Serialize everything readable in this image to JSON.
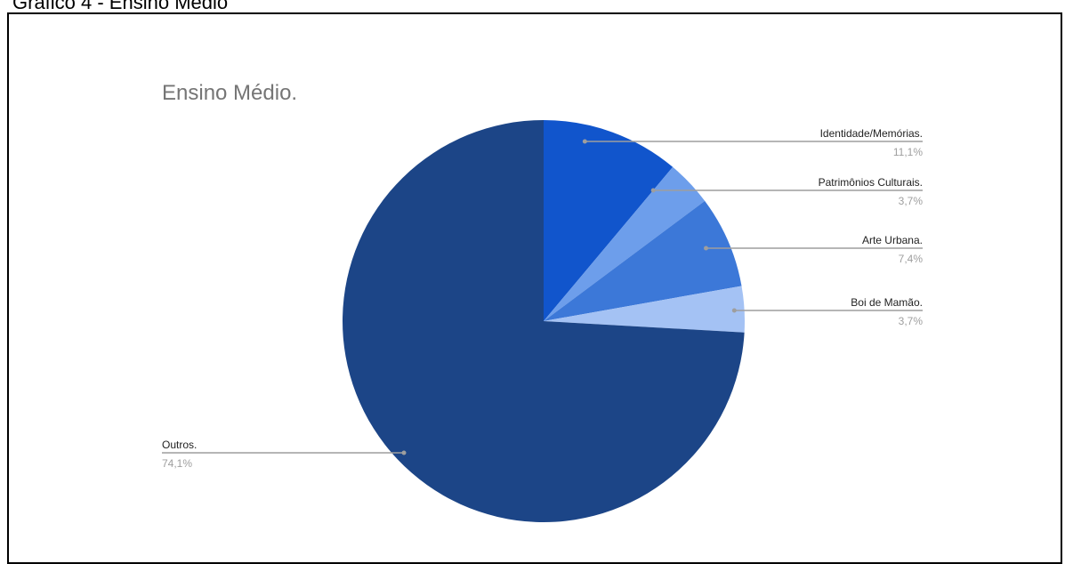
{
  "figure_caption": "Gráfico 4 - Ensino Médio",
  "chart_data": {
    "type": "pie",
    "title": "Ensino Médio.",
    "slices": [
      {
        "label": "Identidade/Memórias.",
        "value": 11.1,
        "value_label": "11,1%",
        "color": "#1155cc"
      },
      {
        "label": "Patrimônios Culturais.",
        "value": 3.7,
        "value_label": "3,7%",
        "color": "#6d9eeb"
      },
      {
        "label": "Arte Urbana.",
        "value": 7.4,
        "value_label": "7,4%",
        "color": "#3c78d8"
      },
      {
        "label": "Boi de Mamão.",
        "value": 3.7,
        "value_label": "3,7%",
        "color": "#a4c2f4"
      },
      {
        "label": "Outros.",
        "value": 74.1,
        "value_label": "74,1%",
        "color": "#1c4587"
      }
    ]
  }
}
